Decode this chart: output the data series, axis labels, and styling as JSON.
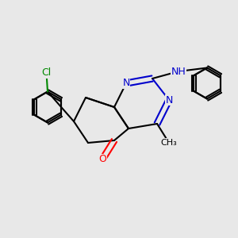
{
  "background_color": "#e8e8e8",
  "bond_color": "#000000",
  "atom_colors": {
    "N": "#0000cc",
    "O": "#ff0000",
    "Cl": "#008800",
    "C": "#000000",
    "H": "#0000cc"
  },
  "figsize": [
    3.0,
    3.0
  ],
  "dpi": 100,
  "lw": 1.5,
  "font_size": 9
}
